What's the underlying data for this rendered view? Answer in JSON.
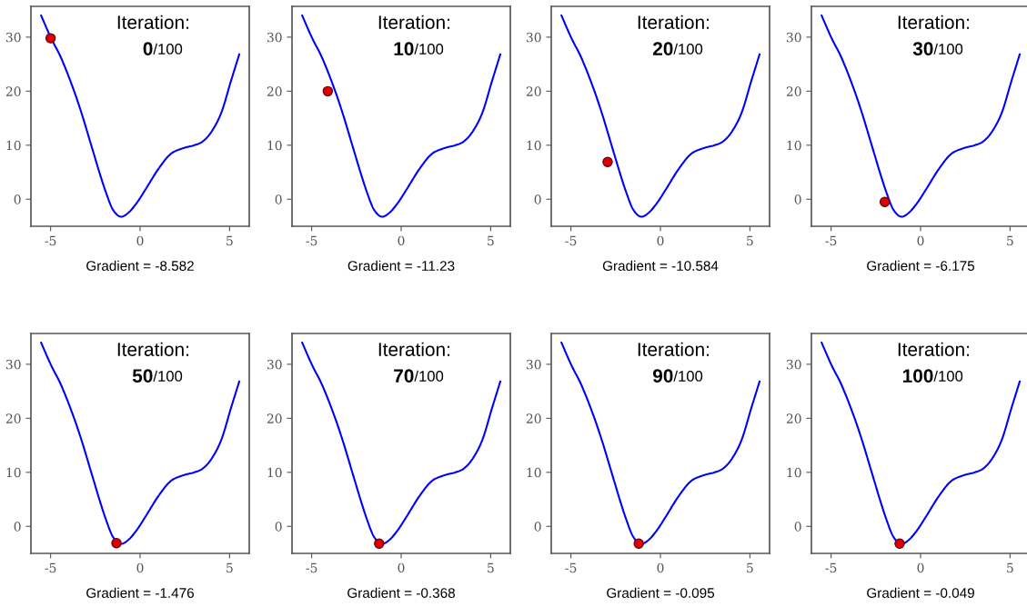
{
  "chart_data": [
    {
      "type": "line",
      "title": "Iteration:",
      "subtitle": "0/100",
      "xlabel": "Gradient = -8.582",
      "xlim": [
        -6.1,
        6.1
      ],
      "ylim": [
        -5,
        35.7
      ],
      "xticks": [
        -5,
        0,
        5
      ],
      "yticks": [
        0,
        10,
        20,
        30
      ],
      "grid": false,
      "series": [
        {
          "color": "#0000ff",
          "x": [
            -5.53,
            -4.97,
            -4.42,
            -3.75,
            -3.24,
            -2.73,
            -2.22,
            -1.88,
            -1.54,
            -1.12,
            -0.69,
            -0.19,
            0.32,
            1.0,
            1.68,
            2.36,
            3.03,
            3.54,
            4.05,
            4.56,
            5.07,
            5.54
          ],
          "values": [
            34.0,
            29.8,
            26.2,
            20.6,
            15.6,
            10.0,
            4.4,
            1.0,
            -1.8,
            -3.2,
            -2.6,
            -0.7,
            1.9,
            5.5,
            8.3,
            9.4,
            10.0,
            10.8,
            12.8,
            16.2,
            21.8,
            26.8
          ]
        },
        {
          "type": "scatter",
          "color": "#dd0000",
          "marker": "circle",
          "x": [
            -5.0
          ],
          "values": [
            29.8
          ]
        }
      ]
    },
    {
      "type": "line",
      "title": "Iteration:",
      "subtitle": "10/100",
      "xlabel": "Gradient = -11.23",
      "xlim": [
        -6.1,
        6.1
      ],
      "ylim": [
        -5,
        35.7
      ],
      "xticks": [
        -5,
        0,
        5
      ],
      "yticks": [
        0,
        10,
        20,
        30
      ],
      "grid": false,
      "series": [
        {
          "color": "#0000ff",
          "x": [
            -5.53,
            -4.97,
            -4.42,
            -3.75,
            -3.24,
            -2.73,
            -2.22,
            -1.88,
            -1.54,
            -1.12,
            -0.69,
            -0.19,
            0.32,
            1.0,
            1.68,
            2.36,
            3.03,
            3.54,
            4.05,
            4.56,
            5.07,
            5.54
          ],
          "values": [
            34.0,
            29.8,
            26.2,
            20.6,
            15.6,
            10.0,
            4.4,
            1.0,
            -1.8,
            -3.2,
            -2.6,
            -0.7,
            1.9,
            5.5,
            8.3,
            9.4,
            10.0,
            10.8,
            12.8,
            16.2,
            21.8,
            26.8
          ]
        },
        {
          "type": "scatter",
          "color": "#dd0000",
          "marker": "circle",
          "x": [
            -4.1
          ],
          "values": [
            20.0
          ]
        }
      ]
    },
    {
      "type": "line",
      "title": "Iteration:",
      "subtitle": "20/100",
      "xlabel": "Gradient = -10.584",
      "xlim": [
        -6.1,
        6.1
      ],
      "ylim": [
        -5,
        35.7
      ],
      "xticks": [
        -5,
        0,
        5
      ],
      "yticks": [
        0,
        10,
        20,
        30
      ],
      "grid": false,
      "series": [
        {
          "color": "#0000ff",
          "x": [
            -5.53,
            -4.97,
            -4.42,
            -3.75,
            -3.24,
            -2.73,
            -2.22,
            -1.88,
            -1.54,
            -1.12,
            -0.69,
            -0.19,
            0.32,
            1.0,
            1.68,
            2.36,
            3.03,
            3.54,
            4.05,
            4.56,
            5.07,
            5.54
          ],
          "values": [
            34.0,
            29.8,
            26.2,
            20.6,
            15.6,
            10.0,
            4.4,
            1.0,
            -1.8,
            -3.2,
            -2.6,
            -0.7,
            1.9,
            5.5,
            8.3,
            9.4,
            10.0,
            10.8,
            12.8,
            16.2,
            21.8,
            26.8
          ]
        },
        {
          "type": "scatter",
          "color": "#dd0000",
          "marker": "circle",
          "x": [
            -2.95
          ],
          "values": [
            6.9
          ]
        }
      ]
    },
    {
      "type": "line",
      "title": "Iteration:",
      "subtitle": "30/100",
      "xlabel": "Gradient = -6.175",
      "xlim": [
        -6.1,
        6.1
      ],
      "ylim": [
        -5,
        35.7
      ],
      "xticks": [
        -5,
        0,
        5
      ],
      "yticks": [
        0,
        10,
        20,
        30
      ],
      "grid": false,
      "series": [
        {
          "color": "#0000ff",
          "x": [
            -5.53,
            -4.97,
            -4.42,
            -3.75,
            -3.24,
            -2.73,
            -2.22,
            -1.88,
            -1.54,
            -1.12,
            -0.69,
            -0.19,
            0.32,
            1.0,
            1.68,
            2.36,
            3.03,
            3.54,
            4.05,
            4.56,
            5.07,
            5.54
          ],
          "values": [
            34.0,
            29.8,
            26.2,
            20.6,
            15.6,
            10.0,
            4.4,
            1.0,
            -1.8,
            -3.2,
            -2.6,
            -0.7,
            1.9,
            5.5,
            8.3,
            9.4,
            10.0,
            10.8,
            12.8,
            16.2,
            21.8,
            26.8
          ]
        },
        {
          "type": "scatter",
          "color": "#dd0000",
          "marker": "circle",
          "x": [
            -2.0
          ],
          "values": [
            -0.5
          ]
        }
      ]
    },
    {
      "type": "line",
      "title": "Iteration:",
      "subtitle": "50/100",
      "xlabel": "Gradient = -1.476",
      "xlim": [
        -6.1,
        6.1
      ],
      "ylim": [
        -5,
        35.7
      ],
      "xticks": [
        -5,
        0,
        5
      ],
      "yticks": [
        0,
        10,
        20,
        30
      ],
      "grid": false,
      "series": [
        {
          "color": "#0000ff",
          "x": [
            -5.53,
            -4.97,
            -4.42,
            -3.75,
            -3.24,
            -2.73,
            -2.22,
            -1.88,
            -1.54,
            -1.12,
            -0.69,
            -0.19,
            0.32,
            1.0,
            1.68,
            2.36,
            3.03,
            3.54,
            4.05,
            4.56,
            5.07,
            5.54
          ],
          "values": [
            34.0,
            29.8,
            26.2,
            20.6,
            15.6,
            10.0,
            4.4,
            1.0,
            -1.8,
            -3.2,
            -2.6,
            -0.7,
            1.9,
            5.5,
            8.3,
            9.4,
            10.0,
            10.8,
            12.8,
            16.2,
            21.8,
            26.8
          ]
        },
        {
          "type": "scatter",
          "color": "#dd0000",
          "marker": "circle",
          "x": [
            -1.32
          ],
          "values": [
            -3.1
          ]
        }
      ]
    },
    {
      "type": "line",
      "title": "Iteration:",
      "subtitle": "70/100",
      "xlabel": "Gradient = -0.368",
      "xlim": [
        -6.1,
        6.1
      ],
      "ylim": [
        -5,
        35.7
      ],
      "xticks": [
        -5,
        0,
        5
      ],
      "yticks": [
        0,
        10,
        20,
        30
      ],
      "grid": false,
      "series": [
        {
          "color": "#0000ff",
          "x": [
            -5.53,
            -4.97,
            -4.42,
            -3.75,
            -3.24,
            -2.73,
            -2.22,
            -1.88,
            -1.54,
            -1.12,
            -0.69,
            -0.19,
            0.32,
            1.0,
            1.68,
            2.36,
            3.03,
            3.54,
            4.05,
            4.56,
            5.07,
            5.54
          ],
          "values": [
            34.0,
            29.8,
            26.2,
            20.6,
            15.6,
            10.0,
            4.4,
            1.0,
            -1.8,
            -3.2,
            -2.6,
            -0.7,
            1.9,
            5.5,
            8.3,
            9.4,
            10.0,
            10.8,
            12.8,
            16.2,
            21.8,
            26.8
          ]
        },
        {
          "type": "scatter",
          "color": "#dd0000",
          "marker": "circle",
          "x": [
            -1.23
          ],
          "values": [
            -3.2
          ]
        }
      ]
    },
    {
      "type": "line",
      "title": "Iteration:",
      "subtitle": "90/100",
      "xlabel": "Gradient = -0.095",
      "xlim": [
        -6.1,
        6.1
      ],
      "ylim": [
        -5,
        35.7
      ],
      "xticks": [
        -5,
        0,
        5
      ],
      "yticks": [
        0,
        10,
        20,
        30
      ],
      "grid": false,
      "series": [
        {
          "color": "#0000ff",
          "x": [
            -5.53,
            -4.97,
            -4.42,
            -3.75,
            -3.24,
            -2.73,
            -2.22,
            -1.88,
            -1.54,
            -1.12,
            -0.69,
            -0.19,
            0.32,
            1.0,
            1.68,
            2.36,
            3.03,
            3.54,
            4.05,
            4.56,
            5.07,
            5.54
          ],
          "values": [
            34.0,
            29.8,
            26.2,
            20.6,
            15.6,
            10.0,
            4.4,
            1.0,
            -1.8,
            -3.2,
            -2.6,
            -0.7,
            1.9,
            5.5,
            8.3,
            9.4,
            10.0,
            10.8,
            12.8,
            16.2,
            21.8,
            26.8
          ]
        },
        {
          "type": "scatter",
          "color": "#dd0000",
          "marker": "circle",
          "x": [
            -1.21
          ],
          "values": [
            -3.2
          ]
        }
      ]
    },
    {
      "type": "line",
      "title": "Iteration:",
      "subtitle": "100/100",
      "xlabel": "Gradient = -0.049",
      "xlim": [
        -6.1,
        6.1
      ],
      "ylim": [
        -5,
        35.7
      ],
      "xticks": [
        -5,
        0,
        5
      ],
      "yticks": [
        0,
        10,
        20,
        30
      ],
      "grid": false,
      "series": [
        {
          "color": "#0000ff",
          "x": [
            -5.53,
            -4.97,
            -4.42,
            -3.75,
            -3.24,
            -2.73,
            -2.22,
            -1.88,
            -1.54,
            -1.12,
            -0.69,
            -0.19,
            0.32,
            1.0,
            1.68,
            2.36,
            3.03,
            3.54,
            4.05,
            4.56,
            5.07,
            5.54
          ],
          "values": [
            34.0,
            29.8,
            26.2,
            20.6,
            15.6,
            10.0,
            4.4,
            1.0,
            -1.8,
            -3.2,
            -2.6,
            -0.7,
            1.9,
            5.5,
            8.3,
            9.4,
            10.0,
            10.8,
            12.8,
            16.2,
            21.8,
            26.8
          ]
        },
        {
          "type": "scatter",
          "color": "#dd0000",
          "marker": "circle",
          "x": [
            -1.17
          ],
          "values": [
            -3.2
          ]
        }
      ]
    }
  ]
}
